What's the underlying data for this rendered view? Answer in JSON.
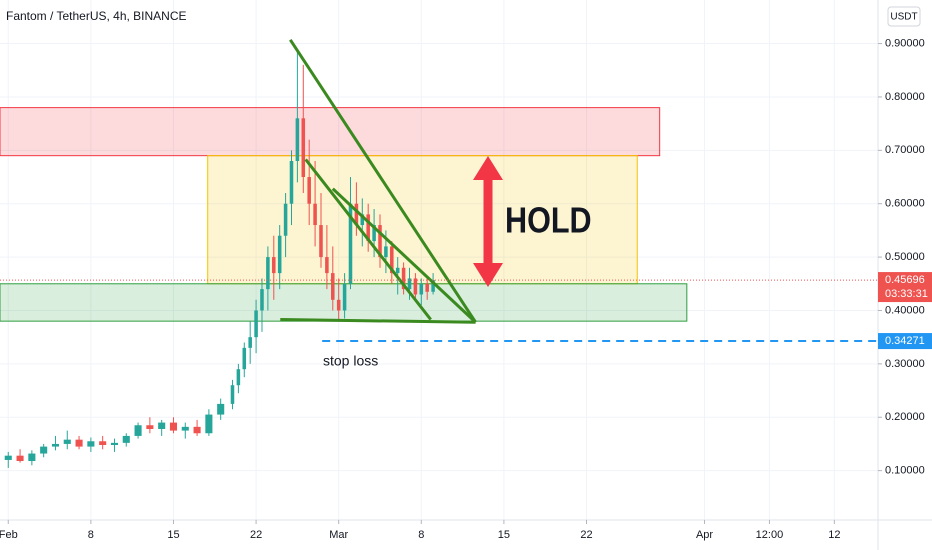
{
  "chart_data": {
    "type": "candlestick",
    "title": "Fantom / TetherUS, 4h, BINANCE",
    "currency": "USDT",
    "up_color": "#26a69a",
    "down_color": "#ef5350",
    "candles": {
      "x": [
        0,
        1,
        2,
        3,
        4,
        5,
        6,
        7,
        8,
        9,
        10,
        11,
        12,
        13,
        14,
        15,
        16,
        17,
        18,
        19,
        19.5,
        20,
        20.5,
        21,
        21.5,
        22,
        22.5,
        23,
        23.5,
        24,
        24.5,
        25,
        25.5,
        26,
        26.5,
        27,
        27.5,
        28,
        28.5,
        29,
        29.5,
        30,
        30.5,
        31,
        31.5,
        32,
        32.5,
        33,
        33.5,
        34,
        34.5,
        35,
        35.5,
        36
      ],
      "open": [
        0.12,
        0.128,
        0.118,
        0.132,
        0.145,
        0.15,
        0.158,
        0.145,
        0.155,
        0.148,
        0.152,
        0.165,
        0.185,
        0.178,
        0.19,
        0.175,
        0.182,
        0.17,
        0.205,
        0.225,
        0.26,
        0.29,
        0.33,
        0.35,
        0.4,
        0.44,
        0.5,
        0.47,
        0.54,
        0.6,
        0.68,
        0.76,
        0.65,
        0.6,
        0.56,
        0.5,
        0.47,
        0.42,
        0.4,
        0.45,
        0.6,
        0.56,
        0.58,
        0.53,
        0.56,
        0.5,
        0.52,
        0.47,
        0.48,
        0.44,
        0.46,
        0.43,
        0.45,
        0.435
      ],
      "high": [
        0.135,
        0.14,
        0.138,
        0.15,
        0.165,
        0.175,
        0.165,
        0.162,
        0.165,
        0.16,
        0.17,
        0.19,
        0.2,
        0.195,
        0.2,
        0.19,
        0.195,
        0.215,
        0.235,
        0.27,
        0.3,
        0.34,
        0.38,
        0.42,
        0.46,
        0.52,
        0.54,
        0.56,
        0.62,
        0.7,
        0.89,
        0.86,
        0.72,
        0.68,
        0.62,
        0.56,
        0.52,
        0.46,
        0.47,
        0.65,
        0.64,
        0.61,
        0.6,
        0.59,
        0.58,
        0.55,
        0.53,
        0.5,
        0.49,
        0.48,
        0.47,
        0.46,
        0.46,
        0.47
      ],
      "low": [
        0.105,
        0.115,
        0.11,
        0.125,
        0.138,
        0.14,
        0.14,
        0.135,
        0.14,
        0.135,
        0.145,
        0.16,
        0.17,
        0.165,
        0.17,
        0.16,
        0.165,
        0.165,
        0.195,
        0.215,
        0.245,
        0.275,
        0.3,
        0.32,
        0.36,
        0.4,
        0.42,
        0.44,
        0.5,
        0.56,
        0.64,
        0.62,
        0.56,
        0.52,
        0.48,
        0.44,
        0.4,
        0.38,
        0.385,
        0.44,
        0.54,
        0.52,
        0.51,
        0.5,
        0.48,
        0.47,
        0.45,
        0.43,
        0.43,
        0.42,
        0.42,
        0.41,
        0.42,
        0.43
      ],
      "close": [
        0.128,
        0.118,
        0.132,
        0.145,
        0.15,
        0.158,
        0.145,
        0.155,
        0.148,
        0.152,
        0.165,
        0.185,
        0.178,
        0.19,
        0.175,
        0.182,
        0.17,
        0.205,
        0.225,
        0.26,
        0.29,
        0.33,
        0.35,
        0.4,
        0.44,
        0.5,
        0.47,
        0.54,
        0.6,
        0.68,
        0.76,
        0.65,
        0.6,
        0.56,
        0.5,
        0.47,
        0.42,
        0.4,
        0.45,
        0.6,
        0.56,
        0.58,
        0.53,
        0.56,
        0.5,
        0.52,
        0.47,
        0.48,
        0.44,
        0.46,
        0.43,
        0.45,
        0.435,
        0.457
      ]
    },
    "xlim": [
      -0.7,
      73.7
    ],
    "xticks": [
      {
        "value": 0,
        "label": "Feb"
      },
      {
        "value": 7,
        "label": "8"
      },
      {
        "value": 14,
        "label": "15"
      },
      {
        "value": 21,
        "label": "22"
      },
      {
        "value": 28,
        "label": "Mar"
      },
      {
        "value": 35,
        "label": "8"
      },
      {
        "value": 42,
        "label": "15"
      },
      {
        "value": 49,
        "label": "22"
      },
      {
        "value": 59,
        "label": "Apr"
      },
      {
        "value": 64.5,
        "label": "12:00"
      },
      {
        "value": 70,
        "label": "12"
      }
    ],
    "ylim": [
      0.0075,
      0.9816
    ],
    "yticks": [
      {
        "value": 0.1,
        "label": "0.10000"
      },
      {
        "value": 0.2,
        "label": "0.20000"
      },
      {
        "value": 0.3,
        "label": "0.30000"
      },
      {
        "value": 0.4,
        "label": "0.40000"
      },
      {
        "value": 0.5,
        "label": "0.50000"
      },
      {
        "value": 0.6,
        "label": "0.60000"
      },
      {
        "value": 0.7,
        "label": "0.70000"
      },
      {
        "value": 0.8,
        "label": "0.80000"
      },
      {
        "value": 0.9,
        "label": "0.90000"
      }
    ],
    "grid": true,
    "last_price": 0.45696,
    "countdown": "03:33:31",
    "stop_loss_price": 0.34271,
    "stop_loss_start": 26.6,
    "annotations": {
      "hold": "HOLD",
      "stop_loss": "stop loss"
    },
    "zones": [
      {
        "low": 0.69,
        "high": 0.78,
        "start": -0.7,
        "end": 55.2,
        "color": "#f23645"
      },
      {
        "low": 0.45,
        "high": 0.69,
        "start": 16.9,
        "end": 53.3,
        "color": "#f5c400"
      },
      {
        "low": 0.38,
        "high": 0.45,
        "start": -0.7,
        "end": 57.5,
        "color": "#2e9e3e"
      }
    ],
    "trendlines": [
      {
        "x": [
          23.9,
          39.6
        ],
        "y": [
          0.907,
          0.378
        ]
      },
      {
        "x": [
          25.2,
          35.8
        ],
        "y": [
          0.683,
          0.383
        ]
      },
      {
        "x": [
          27.5,
          39.6
        ],
        "y": [
          0.628,
          0.378
        ]
      },
      {
        "x": [
          23.05,
          39.6
        ],
        "y": [
          0.383,
          0.378
        ]
      }
    ]
  }
}
